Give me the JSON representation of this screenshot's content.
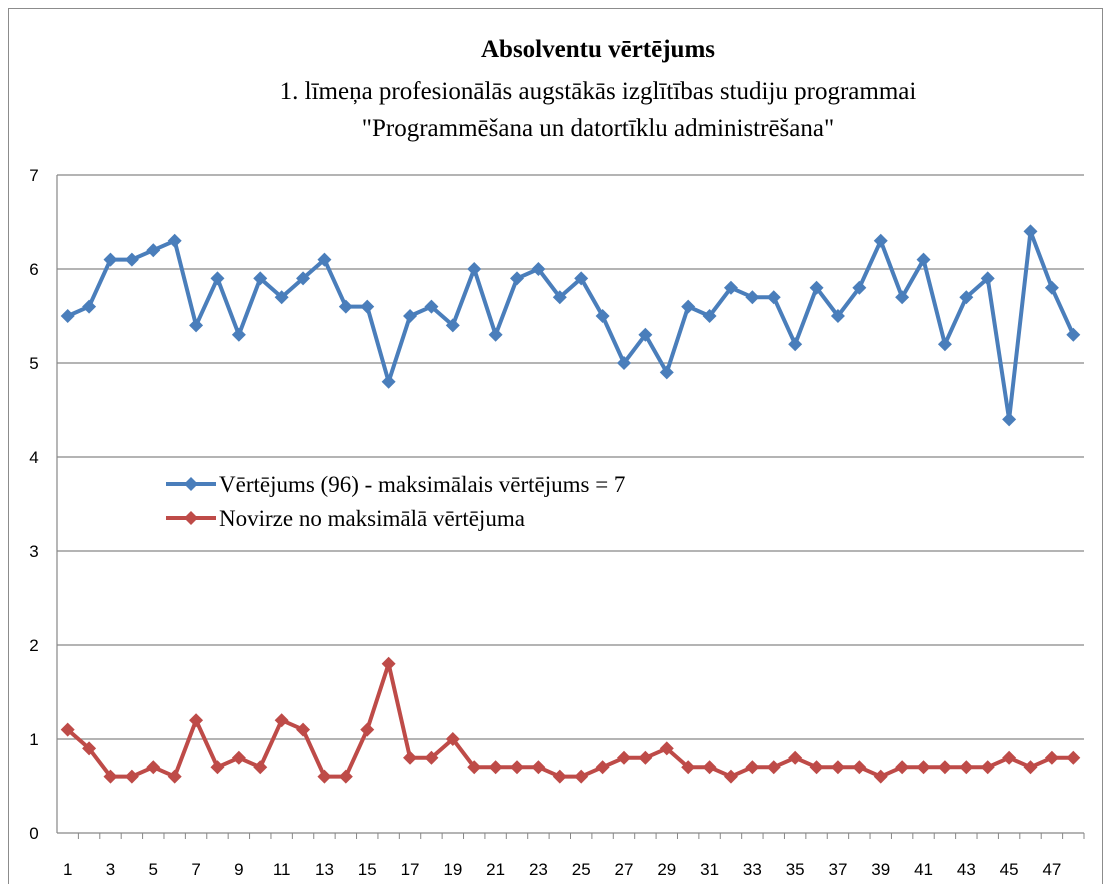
{
  "chart_data": {
    "type": "line",
    "title": "Absolventu vērtējums",
    "subtitle": [
      "1. līmeņa profesionālās augstākās izglītības studiju programmai",
      "\"Programmēšana un datortīklu administrēšana\""
    ],
    "categories": [
      1,
      null,
      3,
      null,
      5,
      null,
      7,
      null,
      9,
      null,
      11,
      null,
      13,
      null,
      15,
      null,
      17,
      null,
      19,
      null,
      21,
      null,
      23,
      null,
      25,
      null,
      27,
      null,
      29,
      null,
      31,
      null,
      33,
      null,
      35,
      null,
      37,
      null,
      39,
      null,
      41,
      null,
      43,
      null,
      45,
      null,
      47,
      null
    ],
    "series": [
      {
        "name": "Vērtējums (96) - maksimālais vērtējums = 7",
        "color": "#4a7ebb",
        "values": [
          5.5,
          5.6,
          6.1,
          6.1,
          6.2,
          6.3,
          5.4,
          5.9,
          5.3,
          5.9,
          5.7,
          5.9,
          6.1,
          5.6,
          5.6,
          4.8,
          5.5,
          5.6,
          5.4,
          6.0,
          5.3,
          5.9,
          6.0,
          5.7,
          5.9,
          5.5,
          5.0,
          5.3,
          4.9,
          5.6,
          5.5,
          5.8,
          5.7,
          5.7,
          5.2,
          5.8,
          5.5,
          5.8,
          6.3,
          5.7,
          6.1,
          5.2,
          5.7,
          5.9,
          4.4,
          6.4,
          5.8,
          5.3
        ]
      },
      {
        "name": "Novirze no maksimālā vērtējuma",
        "color": "#be4b48",
        "values": [
          1.1,
          0.9,
          0.6,
          0.6,
          0.7,
          0.6,
          1.2,
          0.7,
          0.8,
          0.7,
          1.2,
          1.1,
          0.6,
          0.6,
          1.1,
          1.8,
          0.8,
          0.8,
          1.0,
          0.7,
          0.7,
          0.7,
          0.7,
          0.6,
          0.6,
          0.7,
          0.8,
          0.8,
          0.9,
          0.7,
          0.7,
          0.6,
          0.7,
          0.7,
          0.8,
          0.7,
          0.7,
          0.7,
          0.6,
          0.7,
          0.7,
          0.7,
          0.7,
          0.7,
          0.8,
          0.7,
          0.8,
          0.8
        ]
      }
    ],
    "ylim": [
      0,
      7
    ],
    "yticks": [
      0,
      1,
      2,
      3,
      4,
      5,
      6,
      7
    ],
    "grid": true,
    "legend": "left"
  }
}
